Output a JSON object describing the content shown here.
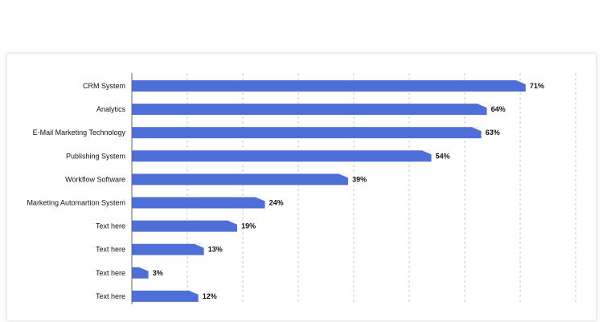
{
  "chart_data": {
    "type": "bar",
    "orientation": "horizontal",
    "categories": [
      "CRM System",
      "Analytics",
      "E-Mail Marketing Technology",
      "Publishing System",
      "Workflow Software",
      "Marketing Automartion System",
      "Text here",
      "Text here",
      "Text here",
      "Text here"
    ],
    "values": [
      71,
      64,
      63,
      54,
      39,
      24,
      19,
      13,
      3,
      12
    ],
    "value_suffix": "%",
    "xlim": [
      0,
      80
    ],
    "grid": true,
    "bar_color": "#4f6fd8",
    "title": "",
    "xlabel": "",
    "ylabel": ""
  }
}
